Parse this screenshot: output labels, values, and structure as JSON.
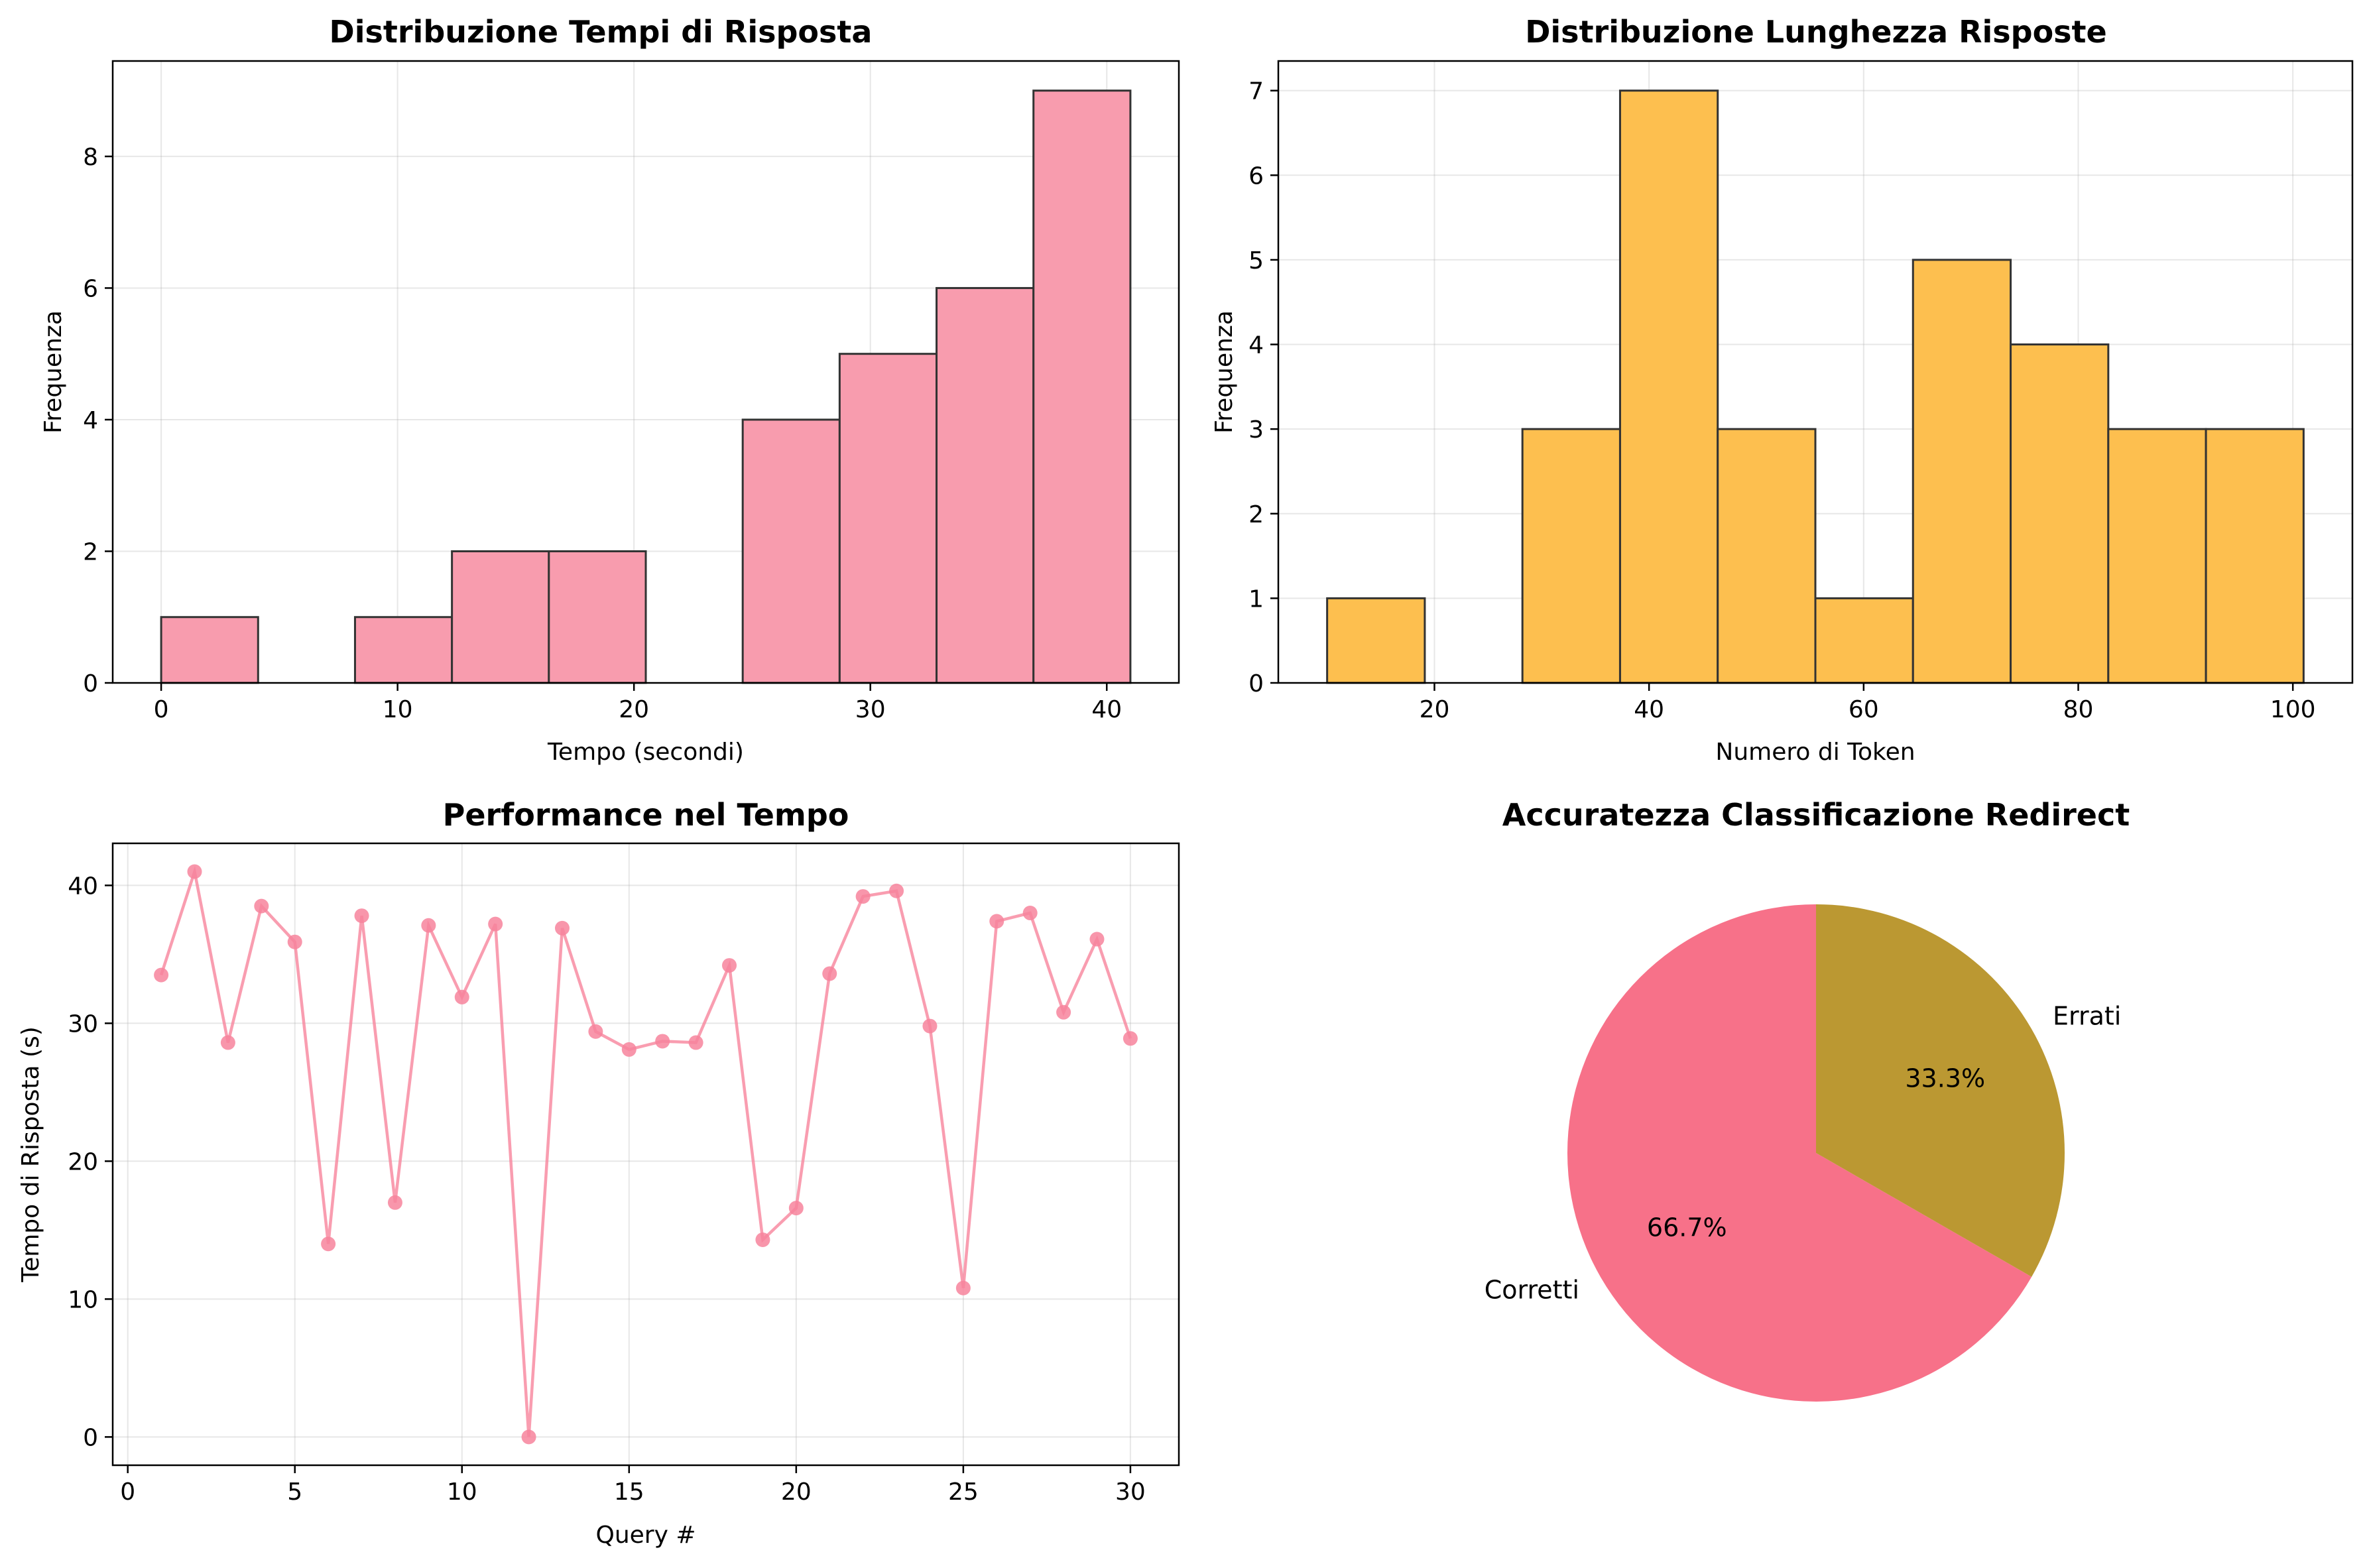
{
  "chart_data": [
    {
      "type": "bar",
      "title": "Distribuzione Tempi di Risposta",
      "xlabel": "Tempo (secondi)",
      "ylabel": "Frequenza",
      "bins": [
        [
          0,
          4.1
        ],
        [
          4.1,
          8.2
        ],
        [
          8.2,
          12.3
        ],
        [
          12.3,
          16.4
        ],
        [
          16.4,
          20.5
        ],
        [
          20.5,
          24.6
        ],
        [
          24.6,
          28.7
        ],
        [
          28.7,
          32.8
        ],
        [
          32.8,
          36.9
        ],
        [
          36.9,
          41.0
        ]
      ],
      "values": [
        1,
        0,
        1,
        2,
        2,
        0,
        4,
        5,
        6,
        9
      ],
      "xlim": [
        -2.05,
        43.05
      ],
      "ylim": [
        0,
        9.45
      ],
      "xticks": [
        0,
        10,
        20,
        30,
        40
      ],
      "yticks": [
        0,
        2,
        4,
        6,
        8
      ],
      "color": "#f89cae",
      "edge_color": "#333333",
      "grid": true
    },
    {
      "type": "bar",
      "title": "Distribuzione Lunghezza Risposte",
      "xlabel": "Numero di Token",
      "ylabel": "Frequenza",
      "bins": [
        [
          10,
          19.1
        ],
        [
          19.1,
          28.2
        ],
        [
          28.2,
          37.3
        ],
        [
          37.3,
          46.4
        ],
        [
          46.4,
          55.5
        ],
        [
          55.5,
          64.6
        ],
        [
          64.6,
          73.7
        ],
        [
          73.7,
          82.8
        ],
        [
          82.8,
          91.9
        ],
        [
          91.9,
          101
        ]
      ],
      "values": [
        1,
        0,
        3,
        7,
        3,
        1,
        5,
        4,
        3,
        3
      ],
      "xlim": [
        5.45,
        105.55
      ],
      "ylim": [
        0,
        7.35
      ],
      "xticks": [
        20,
        40,
        60,
        80,
        100
      ],
      "yticks": [
        0,
        1,
        2,
        3,
        4,
        5,
        6,
        7
      ],
      "color": "#fdbf4f",
      "edge_color": "#333333",
      "grid": true
    },
    {
      "type": "line",
      "title": "Performance nel Tempo",
      "xlabel": "Query #",
      "ylabel": "Tempo di Risposta (s)",
      "x": [
        1,
        2,
        3,
        4,
        5,
        6,
        7,
        8,
        9,
        10,
        11,
        12,
        13,
        14,
        15,
        16,
        17,
        18,
        19,
        20,
        21,
        22,
        23,
        24,
        25,
        26,
        27,
        28,
        29,
        30
      ],
      "y": [
        33.5,
        41.0,
        28.6,
        38.5,
        35.9,
        14.0,
        37.8,
        17.0,
        37.1,
        31.9,
        37.2,
        0.0,
        36.9,
        29.4,
        28.1,
        28.7,
        28.6,
        34.2,
        14.3,
        16.6,
        33.6,
        39.2,
        39.6,
        29.8,
        10.8,
        37.4,
        38.0,
        30.8,
        36.1,
        28.9
      ],
      "xlim": [
        -0.45,
        31.45
      ],
      "ylim": [
        -2.05,
        43.05
      ],
      "xticks": [
        0,
        5,
        10,
        15,
        20,
        25,
        30
      ],
      "yticks": [
        0,
        10,
        20,
        30,
        40
      ],
      "color": "#f7849c",
      "grid": true
    },
    {
      "type": "pie",
      "title": "Accuratezza Classificazione Redirect",
      "labels": [
        "Corretti",
        "Errati"
      ],
      "values": [
        66.7,
        33.3
      ],
      "pct_labels": [
        "66.7%",
        "33.3%"
      ],
      "colors": [
        "#f77189",
        "#bb9832"
      ],
      "start_angle": 90
    }
  ]
}
